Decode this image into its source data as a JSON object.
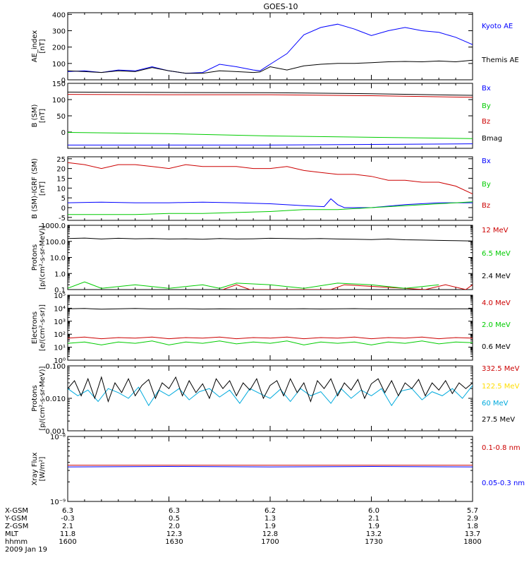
{
  "title": "GOES-10",
  "colors": {
    "black": "#000000",
    "blue": "#0000ff",
    "green": "#00cc00",
    "red": "#cc0000",
    "yellow": "#ffdd00",
    "cyan": "#00aadd"
  },
  "chart_data": [
    {
      "type": "line",
      "ylabel": [
        "AE_index",
        "[nT]"
      ],
      "yscale": "linear",
      "ylim": [
        0,
        410
      ],
      "yticks": [
        0,
        100,
        200,
        300,
        400
      ],
      "ytick_labels": [
        "0",
        "100",
        "200",
        "300",
        "400"
      ],
      "series": [
        {
          "name": "Kyoto AE",
          "color": "#0000ff",
          "x": [
            1600,
            1605,
            1610,
            1615,
            1620,
            1625,
            1630,
            1635,
            1640,
            1645,
            1650,
            1655,
            1657,
            1700,
            1705,
            1710,
            1715,
            1720,
            1725,
            1730,
            1735,
            1740,
            1745,
            1750,
            1755,
            1800
          ],
          "y": [
            50,
            55,
            45,
            60,
            55,
            80,
            55,
            40,
            45,
            95,
            80,
            60,
            55,
            95,
            160,
            275,
            320,
            340,
            310,
            270,
            300,
            320,
            300,
            290,
            260,
            215
          ]
        },
        {
          "name": "Themis AE",
          "color": "#000000",
          "x": [
            1600,
            1605,
            1610,
            1615,
            1620,
            1625,
            1630,
            1635,
            1640,
            1645,
            1650,
            1655,
            1657,
            1700,
            1705,
            1710,
            1715,
            1720,
            1725,
            1730,
            1735,
            1740,
            1745,
            1750,
            1755,
            1800
          ],
          "y": [
            55,
            50,
            45,
            55,
            50,
            75,
            55,
            40,
            40,
            55,
            50,
            45,
            48,
            80,
            60,
            85,
            95,
            100,
            100,
            105,
            110,
            112,
            110,
            115,
            110,
            120
          ]
        }
      ]
    },
    {
      "type": "line",
      "ylabel": [
        "B (SM)",
        "[nT]"
      ],
      "yscale": "linear",
      "ylim": [
        -50,
        150
      ],
      "yticks": [
        0,
        50,
        100,
        150
      ],
      "ytick_labels": [
        "0",
        "50",
        "100",
        "150"
      ],
      "series": [
        {
          "name": "Bx",
          "color": "#0000ff",
          "x": [
            1600,
            1630,
            1700,
            1730,
            1800
          ],
          "y": [
            -40,
            -40,
            -40,
            -38,
            -36
          ]
        },
        {
          "name": "By",
          "color": "#00cc00",
          "x": [
            1600,
            1630,
            1700,
            1730,
            1800
          ],
          "y": [
            -1,
            -5,
            -12,
            -16,
            -20
          ]
        },
        {
          "name": "Bz",
          "color": "#cc0000",
          "x": [
            1600,
            1630,
            1700,
            1730,
            1800
          ],
          "y": [
            116,
            115,
            115,
            112,
            107
          ]
        },
        {
          "name": "Bmag",
          "color": "#000000",
          "x": [
            1600,
            1630,
            1700,
            1730,
            1800
          ],
          "y": [
            123,
            122,
            121,
            118,
            113
          ]
        }
      ]
    },
    {
      "type": "line",
      "ylabel": [
        "B (SM)-IGRF (SM)",
        "[nT]"
      ],
      "yscale": "linear",
      "ylim": [
        -6.5,
        26
      ],
      "yticks": [
        -5,
        0,
        5,
        10,
        15,
        20,
        25
      ],
      "ytick_labels": [
        "-5",
        "0",
        "5",
        "10",
        "15",
        "20",
        "25"
      ],
      "series": [
        {
          "name": "Bx",
          "color": "#0000ff",
          "x": [
            1600,
            1610,
            1620,
            1630,
            1640,
            1650,
            1700,
            1710,
            1716,
            1718,
            1720,
            1722,
            1730,
            1740,
            1750,
            1800
          ],
          "y": [
            2.5,
            2.8,
            2.5,
            2.5,
            2.8,
            2.5,
            2.0,
            1.0,
            0.5,
            4.5,
            1.5,
            0.0,
            0.0,
            1.5,
            2.5,
            2.5
          ]
        },
        {
          "name": "By",
          "color": "#00cc00",
          "x": [
            1600,
            1610,
            1620,
            1630,
            1640,
            1650,
            1700,
            1710,
            1720,
            1730,
            1740,
            1750,
            1800
          ],
          "y": [
            -3.5,
            -3.5,
            -3.5,
            -3.0,
            -3.0,
            -2.5,
            -2.0,
            -1.0,
            -1.0,
            0.0,
            1.0,
            2.0,
            3.0
          ]
        },
        {
          "name": "Bz",
          "color": "#cc0000",
          "x": [
            1600,
            1605,
            1610,
            1615,
            1620,
            1625,
            1630,
            1635,
            1640,
            1645,
            1650,
            1655,
            1700,
            1705,
            1710,
            1715,
            1720,
            1725,
            1730,
            1735,
            1740,
            1745,
            1750,
            1755,
            1800
          ],
          "y": [
            23,
            22,
            20,
            22,
            22,
            21,
            20,
            22,
            21,
            21,
            21,
            20,
            20,
            21,
            19,
            18,
            17,
            17,
            16,
            14,
            14,
            13,
            13,
            11,
            7
          ]
        }
      ]
    },
    {
      "type": "line",
      "ylabel": [
        "Protons",
        "[p/(cm²-s-sr-MeV)]"
      ],
      "yscale": "log",
      "ylim": [
        0.1,
        1000
      ],
      "yticks": [
        0.1,
        1,
        10,
        100,
        1000
      ],
      "ytick_labels": [
        "0.1",
        "1.0",
        "10.0",
        "100.0",
        "1000.0"
      ],
      "series": [
        {
          "name": "12 MeV",
          "color": "#cc0000",
          "x": [
            1646,
            1650,
            1654,
            1718,
            1722,
            1746,
            1752,
            1758,
            1800
          ],
          "y": [
            0.1,
            0.2,
            0.1,
            0.1,
            0.2,
            0.1,
            0.2,
            0.1,
            0.2
          ]
        },
        {
          "name": "6.5 MeV",
          "color": "#00cc00",
          "x": [
            1600,
            1605,
            1610,
            1620,
            1630,
            1640,
            1645,
            1650,
            1700,
            1710,
            1720,
            1730,
            1740,
            1750
          ],
          "y": [
            0.12,
            0.3,
            0.12,
            0.2,
            0.12,
            0.2,
            0.12,
            0.25,
            0.2,
            0.12,
            0.25,
            0.2,
            0.12,
            0.2
          ]
        },
        {
          "name": "2.4 MeV",
          "color": "#000000",
          "x": [
            1600,
            1605,
            1610,
            1615,
            1620,
            1625,
            1630,
            1635,
            1640,
            1645,
            1650,
            1655,
            1700,
            1705,
            1710,
            1715,
            1720,
            1725,
            1730,
            1735,
            1740,
            1745,
            1750,
            1755,
            1800
          ],
          "y": [
            150,
            160,
            140,
            155,
            145,
            150,
            140,
            145,
            135,
            150,
            140,
            145,
            155,
            150,
            145,
            150,
            140,
            135,
            130,
            140,
            125,
            120,
            115,
            110,
            105
          ]
        }
      ]
    },
    {
      "type": "line",
      "ylabel": [
        "Electrons",
        "[e/(cm²-s-sr)]"
      ],
      "yscale": "log",
      "ylim": [
        1,
        100000
      ],
      "yticks": [
        1,
        10,
        100,
        1000,
        10000,
        100000
      ],
      "ytick_labels": [
        "10⁰",
        "10¹",
        "10²",
        "10³",
        "10⁴",
        "10⁵"
      ],
      "series": [
        {
          "name": "4.0 MeV",
          "color": "#cc0000",
          "x": [
            1600,
            1605,
            1610,
            1615,
            1620,
            1625,
            1630,
            1635,
            1640,
            1645,
            1650,
            1655,
            1700,
            1705,
            1710,
            1715,
            1720,
            1725,
            1730,
            1735,
            1740,
            1745,
            1750,
            1755,
            1800
          ],
          "y": [
            50,
            60,
            45,
            55,
            50,
            60,
            45,
            55,
            50,
            60,
            45,
            55,
            50,
            60,
            45,
            55,
            50,
            60,
            45,
            55,
            50,
            60,
            45,
            55,
            50
          ]
        },
        {
          "name": "2.0 MeV",
          "color": "#00cc00",
          "x": [
            1600,
            1605,
            1610,
            1615,
            1620,
            1625,
            1630,
            1635,
            1640,
            1645,
            1650,
            1655,
            1700,
            1705,
            1710,
            1715,
            1720,
            1725,
            1730,
            1735,
            1740,
            1745,
            1750,
            1755,
            1800
          ],
          "y": [
            20,
            25,
            15,
            25,
            20,
            30,
            15,
            25,
            20,
            30,
            18,
            25,
            20,
            30,
            15,
            25,
            20,
            25,
            15,
            25,
            20,
            30,
            18,
            25,
            22
          ]
        },
        {
          "name": "0.6 MeV",
          "color": "#000000",
          "x": [
            1600,
            1605,
            1610,
            1615,
            1620,
            1625,
            1630,
            1635,
            1640,
            1645,
            1650,
            1655,
            1700,
            1705,
            1710,
            1715,
            1720,
            1725,
            1730,
            1735,
            1740,
            1745,
            1750,
            1755,
            1800
          ],
          "y": [
            9000,
            9500,
            8500,
            9000,
            9500,
            8800,
            9000,
            9200,
            8600,
            9000,
            8800,
            9100,
            9000,
            8800,
            9200,
            8700,
            9000,
            9300,
            8800,
            9000,
            8900,
            9100,
            8800,
            8900,
            9000
          ]
        }
      ]
    },
    {
      "type": "line",
      "ylabel": [
        "Protons",
        "[p/(cm²-s-sr-MeV)]"
      ],
      "yscale": "log",
      "ylim": [
        0.001,
        0.1
      ],
      "yticks": [
        0.001,
        0.01,
        0.1
      ],
      "ytick_labels": [
        "0.001",
        "0.010",
        "0.100"
      ],
      "series": [
        {
          "name": "332.5 MeV",
          "color": "#cc0000",
          "x": [],
          "y": []
        },
        {
          "name": "122.5 MeV",
          "color": "#ffdd00",
          "x": [],
          "y": []
        },
        {
          "name": "60 MeV",
          "color": "#00aadd",
          "x": [
            1600,
            1603,
            1606,
            1609,
            1612,
            1615,
            1618,
            1621,
            1624,
            1627,
            1630,
            1633,
            1636,
            1639,
            1642,
            1645,
            1648,
            1651,
            1654,
            1657,
            1700,
            1703,
            1706,
            1709,
            1712,
            1715,
            1718,
            1721,
            1724,
            1727,
            1730,
            1733,
            1736,
            1739,
            1742,
            1745,
            1748,
            1751,
            1754,
            1757,
            1800
          ],
          "y": [
            0.02,
            0.012,
            0.018,
            0.008,
            0.02,
            0.015,
            0.01,
            0.022,
            0.006,
            0.018,
            0.012,
            0.02,
            0.009,
            0.016,
            0.02,
            0.011,
            0.018,
            0.007,
            0.02,
            0.014,
            0.01,
            0.019,
            0.008,
            0.02,
            0.012,
            0.016,
            0.007,
            0.02,
            0.01,
            0.018,
            0.012,
            0.02,
            0.006,
            0.017,
            0.02,
            0.009,
            0.016,
            0.012,
            0.02,
            0.01,
            0.025
          ]
        },
        {
          "name": "27.5 MeV",
          "color": "#000000",
          "x": [
            1600,
            1602,
            1604,
            1606,
            1608,
            1610,
            1612,
            1614,
            1616,
            1618,
            1620,
            1622,
            1624,
            1626,
            1628,
            1630,
            1632,
            1634,
            1636,
            1638,
            1640,
            1642,
            1644,
            1646,
            1648,
            1650,
            1652,
            1654,
            1656,
            1658,
            1700,
            1702,
            1704,
            1706,
            1708,
            1710,
            1712,
            1714,
            1716,
            1718,
            1720,
            1722,
            1724,
            1726,
            1728,
            1730,
            1732,
            1734,
            1736,
            1738,
            1740,
            1742,
            1744,
            1746,
            1748,
            1750,
            1752,
            1754,
            1756,
            1758,
            1800
          ],
          "y": [
            0.02,
            0.035,
            0.012,
            0.04,
            0.01,
            0.045,
            0.008,
            0.03,
            0.015,
            0.04,
            0.012,
            0.025,
            0.038,
            0.01,
            0.03,
            0.02,
            0.045,
            0.012,
            0.035,
            0.015,
            0.028,
            0.01,
            0.04,
            0.02,
            0.035,
            0.012,
            0.03,
            0.018,
            0.04,
            0.01,
            0.025,
            0.035,
            0.012,
            0.04,
            0.015,
            0.03,
            0.008,
            0.035,
            0.02,
            0.04,
            0.012,
            0.03,
            0.018,
            0.038,
            0.01,
            0.028,
            0.04,
            0.015,
            0.035,
            0.012,
            0.03,
            0.02,
            0.038,
            0.012,
            0.03,
            0.018,
            0.035,
            0.014,
            0.03,
            0.02,
            0.03
          ]
        }
      ]
    },
    {
      "type": "line",
      "ylabel": [
        "Xray Flux",
        "[W/m²]"
      ],
      "yscale": "log",
      "ylim": [
        1e-09,
        1e-08
      ],
      "yticks": [
        1e-09,
        1e-08
      ],
      "ytick_labels": [
        "10⁻⁹",
        "10⁻⁸"
      ],
      "series": [
        {
          "name": "0.1-0.8 nm",
          "color": "#cc0000",
          "x": [
            1600,
            1630,
            1700,
            1730,
            1800
          ],
          "y": [
            3.6e-09,
            3.6e-09,
            3.6e-09,
            3.6e-09,
            3.6e-09
          ]
        },
        {
          "name": "0.05-0.3 nm",
          "color": "#0000ff",
          "x": [
            1600,
            1630,
            1700,
            1730,
            1800
          ],
          "y": [
            3.4e-09,
            3.45e-09,
            3.4e-09,
            3.45e-09,
            3.4e-09
          ]
        }
      ]
    }
  ],
  "orbit_table": {
    "row_labels": [
      "X-GSM",
      "Y-GSM",
      "Z-GSM",
      "MLT",
      "hhmm"
    ],
    "columns": [
      [
        "6.3",
        "-0.3",
        "2.1",
        "11.8",
        "1600"
      ],
      [
        "6.3",
        "0.5",
        "2.0",
        "12.3",
        "1630"
      ],
      [
        "6.2",
        "1.3",
        "1.9",
        "12.8",
        "1700"
      ],
      [
        "6.0",
        "2.1",
        "1.9",
        "13.2",
        "1730"
      ],
      [
        "5.7",
        "2.9",
        "1.8",
        "13.7",
        "1800"
      ]
    ],
    "date": "2009 Jan 19"
  }
}
